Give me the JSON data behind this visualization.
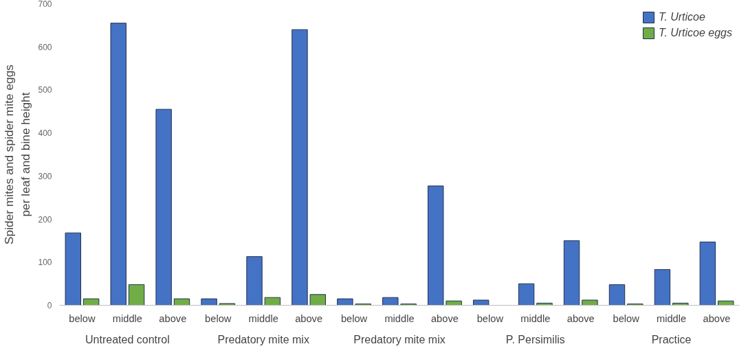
{
  "chart_data": {
    "type": "bar",
    "ylabel": "Spider mites and spider mite eggs\nper leaf and bine height",
    "categories": [
      "below",
      "middle",
      "above",
      "below",
      "middle",
      "above",
      "below",
      "middle",
      "above",
      "below",
      "middle",
      "above",
      "below",
      "middle",
      "above"
    ],
    "series": [
      {
        "name": "T. Urticoe",
        "color": "#4472c4",
        "values": [
          168,
          655,
          455,
          15,
          113,
          640,
          15,
          18,
          277,
          12,
          50,
          150,
          48,
          83,
          147
        ]
      },
      {
        "name": "T. Urticoe eggs",
        "color": "#70ad47",
        "values": [
          15,
          48,
          15,
          4,
          18,
          25,
          3,
          3,
          10,
          null,
          5,
          12,
          3,
          5,
          10
        ]
      }
    ],
    "annotations": [
      "Untreated control",
      "Predatory mite mix",
      "Predatory mite mix",
      "P. Persimilis",
      "Practice"
    ],
    "ylim": [
      0,
      700
    ],
    "yticks": [
      0,
      100,
      200,
      300,
      400,
      500,
      600,
      700
    ],
    "grid": false,
    "legend": "top right"
  }
}
